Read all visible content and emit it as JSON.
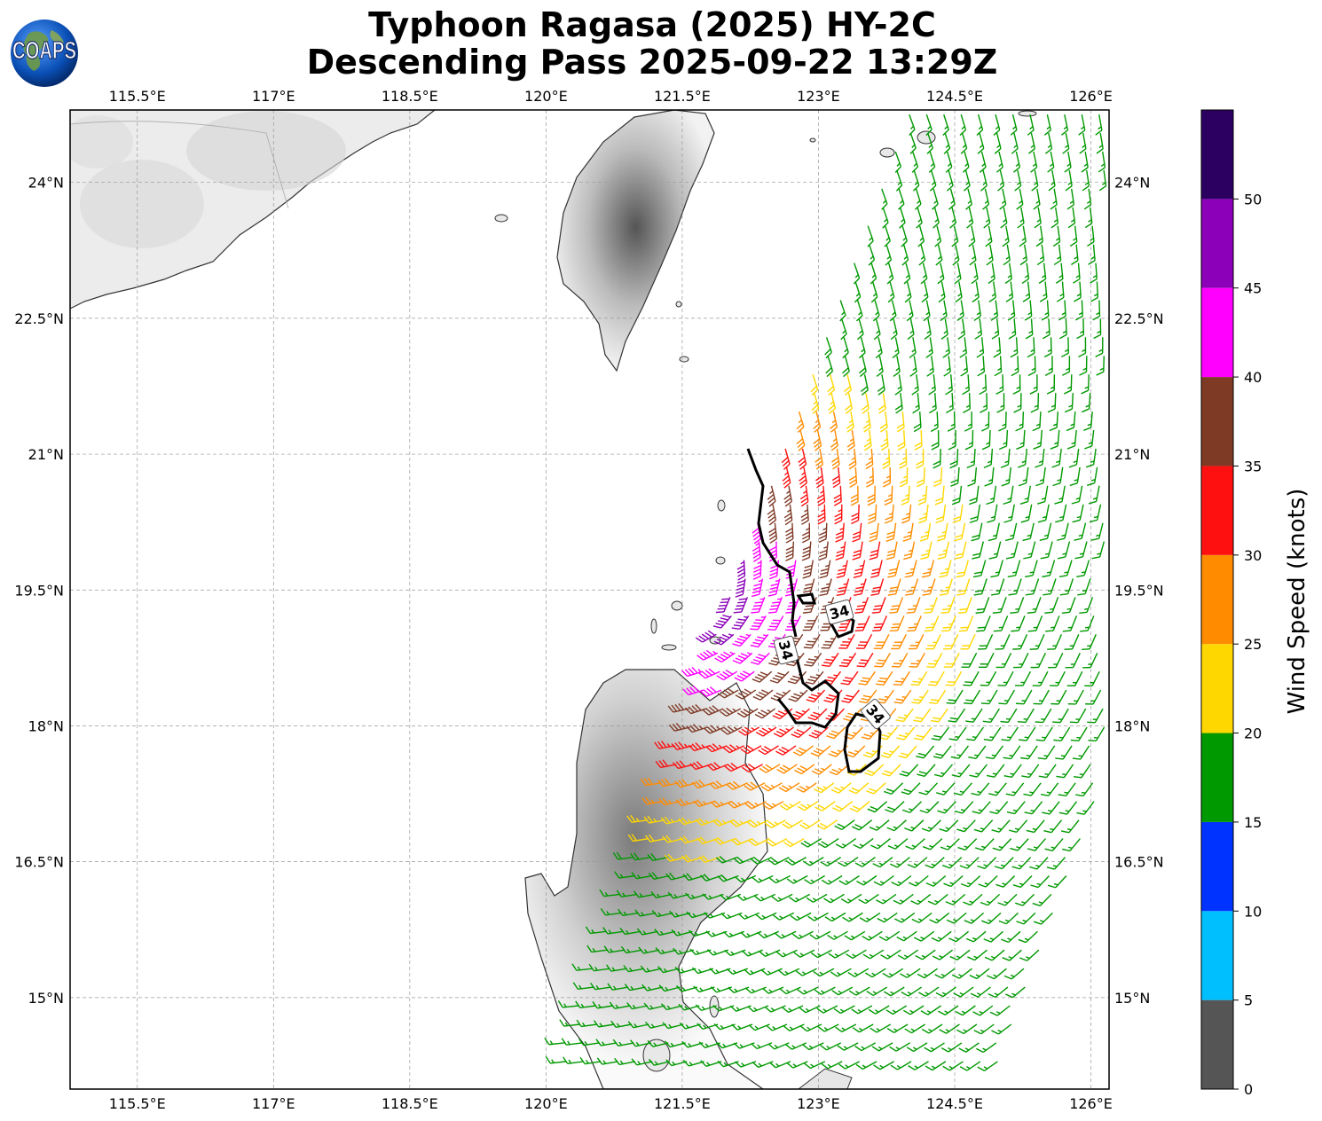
{
  "title": {
    "line1": "Typhoon Ragasa (2025) HY-2C",
    "line2": "Descending Pass 2025-09-22 13:29Z"
  },
  "logo": {
    "text": "COAPS",
    "icon": "globe-logo-icon"
  },
  "map": {
    "lon_ticks": [
      "115.5°E",
      "117°E",
      "118.5°E",
      "120°E",
      "121.5°E",
      "123°E",
      "124.5°E",
      "126°E"
    ],
    "lat_ticks": [
      "24°N",
      "22.5°N",
      "21°N",
      "19.5°N",
      "18°N",
      "16.5°N",
      "15°N"
    ],
    "lon_values": [
      115.5,
      117,
      118.5,
      120,
      121.5,
      123,
      124.5,
      126
    ],
    "lat_values": [
      24,
      22.5,
      21,
      19.5,
      18,
      16.5,
      15
    ],
    "extent": {
      "lon_min": 114.76,
      "lon_max": 126.2,
      "lat_min": 13.99,
      "lat_max": 24.8
    },
    "contour_label": "34"
  },
  "colorbar": {
    "label": "Wind Speed (knots)",
    "tick_labels": [
      "0",
      "5",
      "10",
      "15",
      "20",
      "25",
      "30",
      "35",
      "40",
      "45",
      "50"
    ],
    "bins": [
      {
        "min": 0,
        "max": 5,
        "color": "#555555"
      },
      {
        "min": 5,
        "max": 10,
        "color": "#00bfff"
      },
      {
        "min": 10,
        "max": 15,
        "color": "#0033ff"
      },
      {
        "min": 15,
        "max": 20,
        "color": "#009900"
      },
      {
        "min": 20,
        "max": 25,
        "color": "#ffd700"
      },
      {
        "min": 25,
        "max": 30,
        "color": "#ff8c00"
      },
      {
        "min": 30,
        "max": 35,
        "color": "#ff1010"
      },
      {
        "min": 35,
        "max": 40,
        "color": "#7f3a26"
      },
      {
        "min": 40,
        "max": 45,
        "color": "#ff00ff"
      },
      {
        "min": 45,
        "max": 50,
        "color": "#8b00b8"
      },
      {
        "min": 50,
        "max": 55,
        "color": "#2b0060"
      }
    ]
  }
}
